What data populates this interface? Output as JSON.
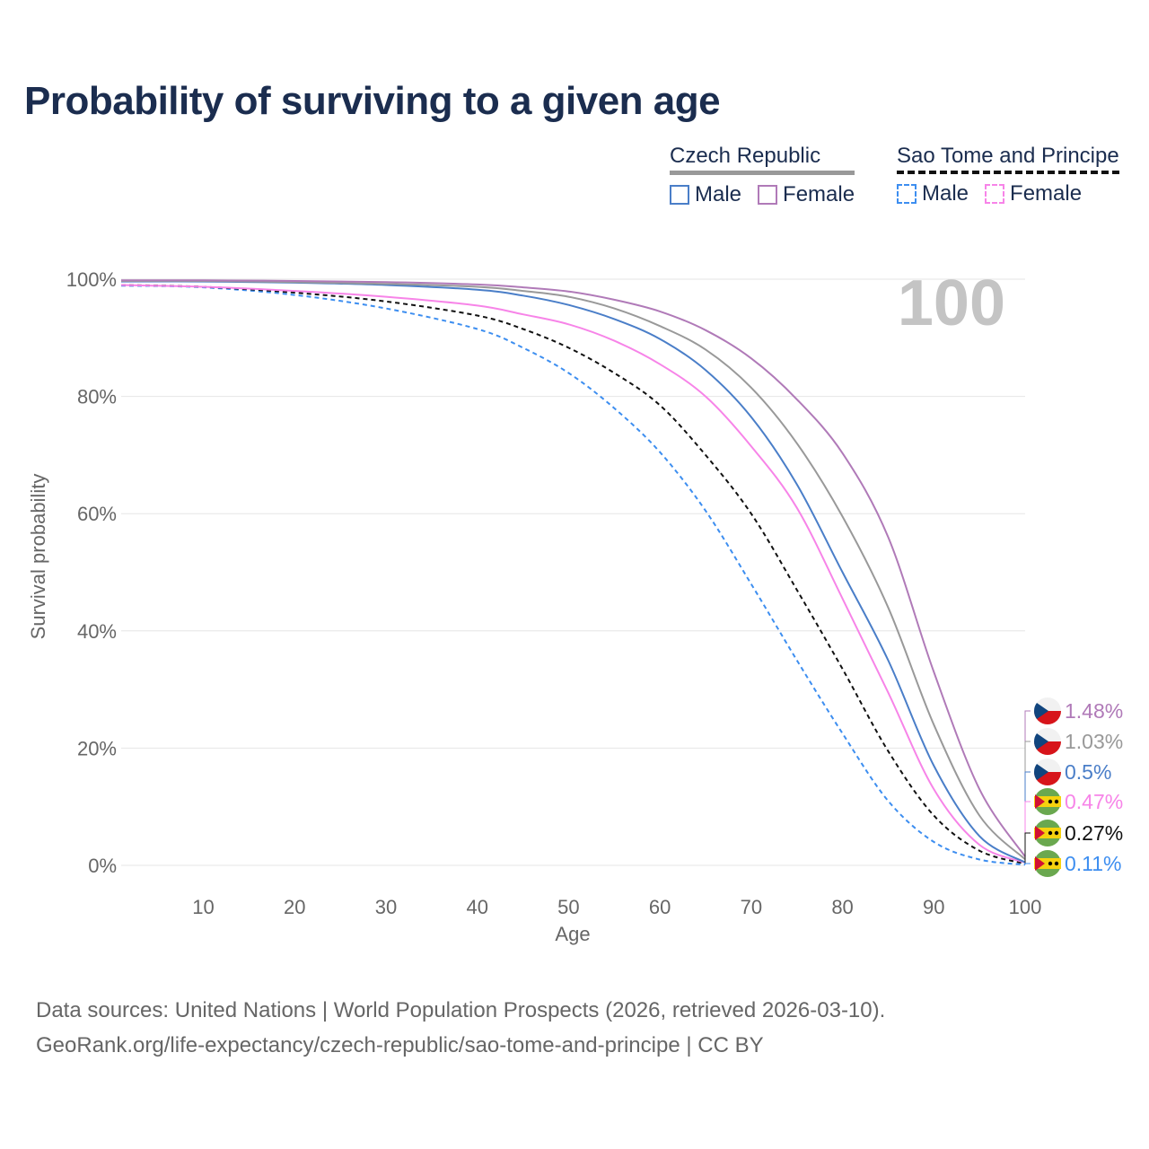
{
  "colors": {
    "title": "#1b2d4f",
    "czech_male": "#4a7ec8",
    "czech_female": "#b07ab8",
    "czech_total": "#999999",
    "stp_male": "#3d8ef0",
    "stp_female": "#f784e8",
    "stp_total": "#111111",
    "grid": "#e6e6e6",
    "axis_text": "#666666",
    "watermark": "#c4c4c4"
  },
  "legend": {
    "czech": {
      "label": "Czech Republic",
      "male": "Male",
      "female": "Female"
    },
    "stp": {
      "label": "Sao Tome and Principe",
      "male": "Male",
      "female": "Female"
    }
  },
  "source": {
    "line1": "Data sources: United Nations | World Population Prospects (2026, retrieved 2026-03-10).",
    "line2": "GeoRank.org/life-expectancy/czech-republic/sao-tome-and-principe | CC BY"
  },
  "chart_data": {
    "type": "line",
    "title": "Probability of surviving to a given age",
    "xlabel": "Age",
    "ylabel": "Survival probability",
    "xlim": [
      1,
      100
    ],
    "ylim": [
      0,
      100
    ],
    "xticks": [
      10,
      20,
      30,
      40,
      50,
      60,
      70,
      80,
      90,
      100
    ],
    "xtick_labels": [
      "10",
      "20",
      "30",
      "40",
      "50",
      "60",
      "70",
      "80",
      "90",
      "100"
    ],
    "yticks": [
      0,
      20,
      40,
      60,
      80,
      100
    ],
    "ytick_labels": [
      "0%",
      "20%",
      "40%",
      "60%",
      "80%",
      "100%"
    ],
    "year_label": "100",
    "x": [
      1,
      10,
      20,
      30,
      40,
      45,
      50,
      55,
      60,
      65,
      70,
      75,
      80,
      85,
      90,
      95,
      100
    ],
    "series": [
      {
        "name": "Czech Republic Female",
        "key": "czech_female",
        "dashed": false,
        "values": [
          99.8,
          99.8,
          99.7,
          99.5,
          99.1,
          98.6,
          97.9,
          96.5,
          94.5,
          91.3,
          86.5,
          79.5,
          70.3,
          56.0,
          33.0,
          13.0,
          1.48
        ],
        "end_label": "1.48%"
      },
      {
        "name": "Czech Republic",
        "key": "czech_total",
        "dashed": false,
        "values": [
          99.7,
          99.7,
          99.5,
          99.2,
          98.7,
          98.0,
          97.0,
          95.0,
          92.0,
          88.0,
          81.5,
          72.0,
          59.5,
          44.0,
          24.0,
          8.5,
          1.03
        ],
        "end_label": "1.03%"
      },
      {
        "name": "Czech Republic Male",
        "key": "czech_male",
        "dashed": false,
        "values": [
          99.6,
          99.6,
          99.4,
          99.0,
          98.2,
          97.2,
          95.6,
          93.2,
          89.8,
          84.5,
          76.5,
          65.0,
          50.0,
          35.0,
          17.0,
          5.0,
          0.5
        ],
        "end_label": "0.5%"
      },
      {
        "name": "Sao Tome and Principe Female",
        "key": "stp_female",
        "dashed": false,
        "values": [
          99.0,
          98.7,
          98.0,
          97.0,
          95.5,
          94.0,
          92.3,
          89.5,
          85.5,
          80.0,
          71.5,
          61.0,
          45.5,
          29.5,
          13.0,
          3.5,
          0.47
        ],
        "end_label": "0.47%"
      },
      {
        "name": "Sao Tome and Principe",
        "key": "stp_total",
        "dashed": true,
        "values": [
          99.0,
          98.7,
          97.7,
          96.2,
          93.8,
          91.5,
          88.3,
          84.0,
          78.5,
          70.0,
          60.0,
          47.0,
          33.5,
          19.5,
          8.5,
          2.5,
          0.27
        ],
        "end_label": "0.27%"
      },
      {
        "name": "Sao Tome and Principe Male",
        "key": "stp_male",
        "dashed": true,
        "values": [
          98.9,
          98.6,
          97.3,
          95.0,
          91.5,
          88.3,
          84.0,
          78.0,
          70.5,
          60.5,
          48.0,
          35.0,
          22.5,
          11.0,
          4.0,
          1.0,
          0.11
        ],
        "end_label": "0.11%"
      }
    ]
  }
}
